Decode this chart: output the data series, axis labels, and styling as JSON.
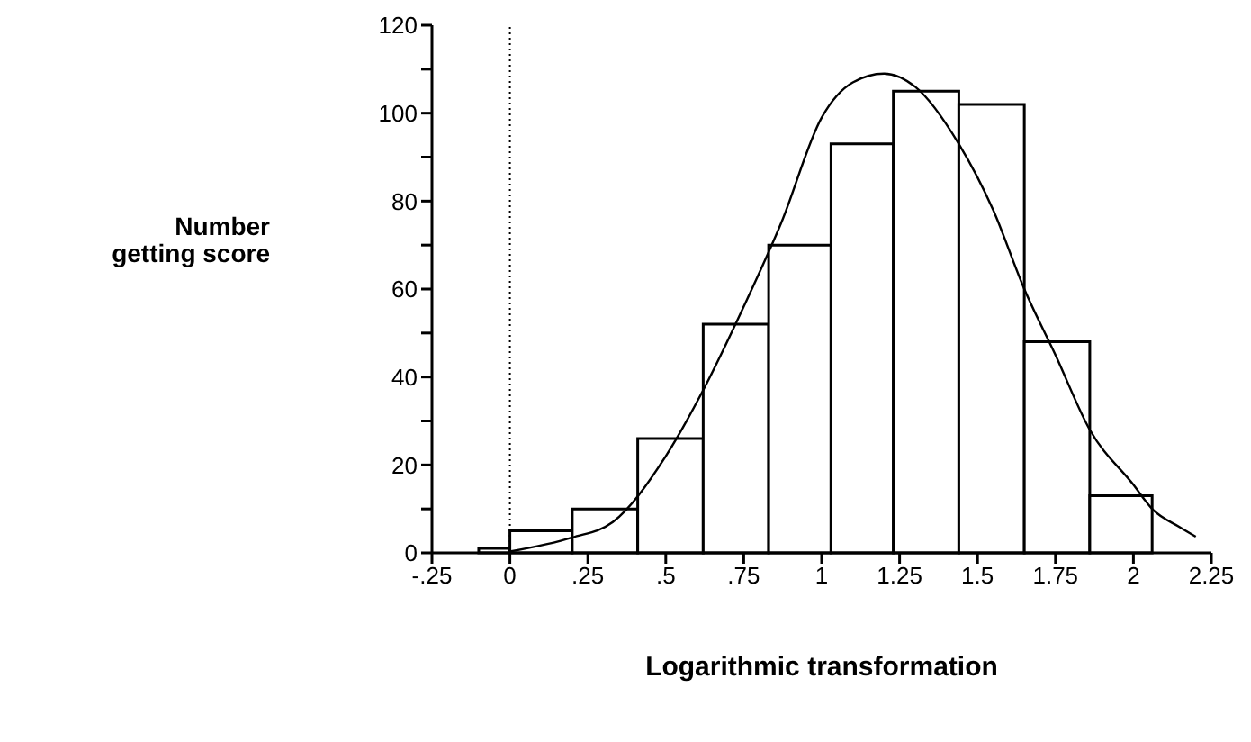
{
  "chart_data": {
    "type": "histogram",
    "xlabel": "Logarithmic transformation",
    "ylabel": "Number getting score",
    "bins": [
      -0.1,
      0,
      0.2,
      0.41,
      0.62,
      0.83,
      1.03,
      1.23,
      1.44,
      1.65,
      1.86,
      2.06
    ],
    "values": [
      1,
      5,
      10,
      26,
      52,
      70,
      93,
      105,
      102,
      48,
      13
    ],
    "color": "#ffffff",
    "series": [
      {
        "type": "line",
        "color": "#000000",
        "x": [
          0,
          0.2,
          0.33,
          0.5,
          0.62,
          0.75,
          0.87,
          1.0,
          1.1,
          1.2,
          1.3,
          1.44,
          1.55,
          1.65,
          1.75,
          1.86,
          2.0,
          2.06,
          2.15,
          2.2
        ],
        "values": [
          0.3,
          3.5,
          7,
          22,
          37,
          56,
          75,
          99,
          107,
          109,
          106,
          93,
          78,
          60,
          45,
          28,
          15.5,
          10,
          5.8,
          3.7
        ]
      }
    ],
    "xlim": [
      -0.25,
      2.25
    ],
    "xticks": [
      {
        "value": -0.25,
        "label": "-.25"
      },
      0,
      {
        "value": 0.25,
        "label": ".25"
      },
      {
        "value": 0.5,
        "label": ".5"
      },
      {
        "value": 0.75,
        "label": ".75"
      },
      1,
      1.25,
      1.5,
      1.75,
      2,
      2.25
    ],
    "ylim": [
      0,
      120
    ],
    "yticks": [
      0,
      {
        "value": 10,
        "label": null
      },
      20,
      {
        "value": 30,
        "label": null
      },
      40,
      {
        "value": 50,
        "label": null
      },
      60,
      {
        "value": 70,
        "label": null
      },
      80,
      {
        "value": 90,
        "label": null
      },
      100,
      {
        "value": 110,
        "label": null
      },
      120
    ],
    "ref_lines": [
      {
        "axis": "x",
        "value": 0,
        "line_style": "dotted",
        "color": "#000000"
      }
    ],
    "grid": false,
    "marker": "none",
    "line_style": "solid"
  }
}
